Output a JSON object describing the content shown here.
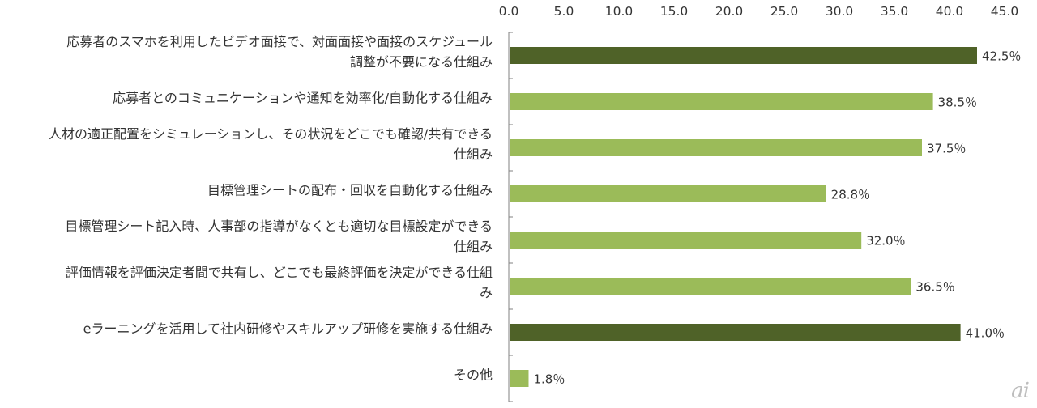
{
  "chart_data": {
    "type": "bar",
    "orientation": "horizontal",
    "categories": [
      [
        "応募者のスマホを利用したビデオ面接で、対面面接や面接のスケジュール",
        "調整が不要になる仕組み"
      ],
      [
        "応募者とのコミュニケーションや通知を効率化/自動化する仕組み"
      ],
      [
        "人材の適正配置をシミュレーションし、その状況をどこでも確認/共有できる",
        "仕組み"
      ],
      [
        "目標管理シートの配布・回収を自動化する仕組み"
      ],
      [
        "目標管理シート記入時、人事部の指導がなくとも適切な目標設定ができる",
        "仕組み"
      ],
      [
        "評価情報を評価決定者間で共有し、どこでも最終評価を決定ができる仕組",
        "み"
      ],
      [
        "eラーニングを活用して社内研修やスキルアップ研修を実施する仕組み"
      ],
      [
        "その他"
      ]
    ],
    "values": [
      42.5,
      38.5,
      37.5,
      28.8,
      32.0,
      36.5,
      41.0,
      1.8
    ],
    "value_labels": [
      "42.5％",
      "38.5％",
      "37.5％",
      "28.8％",
      "32.0％",
      "36.5％",
      "41.0％",
      "1.8％"
    ],
    "highlight": [
      true,
      false,
      false,
      false,
      false,
      false,
      true,
      false
    ],
    "xlim": [
      0,
      45
    ],
    "ticks": [
      0,
      5,
      10,
      15,
      20,
      25,
      30,
      35,
      40,
      45
    ],
    "tick_labels": [
      "0.0",
      "5.0",
      "10.0",
      "15.0",
      "20.0",
      "25.0",
      "30.0",
      "35.0",
      "40.0",
      "45.0"
    ],
    "axis_position": "top",
    "grid": false,
    "legend": "none",
    "colors": {
      "highlight": "#4f6228",
      "normal": "#9bbb59",
      "axis": "#808080"
    }
  },
  "watermark": "ai"
}
